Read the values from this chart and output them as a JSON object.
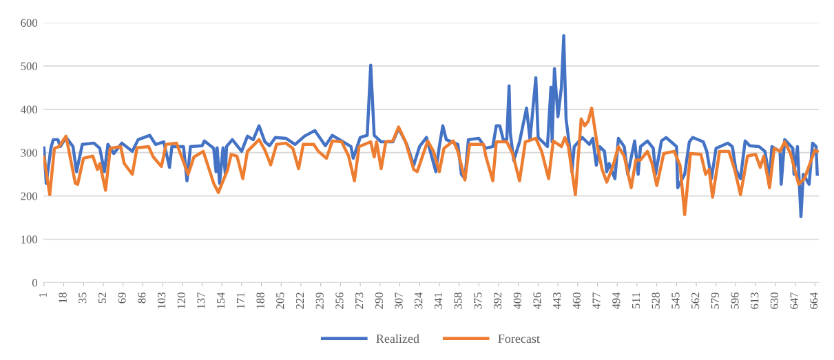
{
  "chart_data": {
    "type": "line",
    "xlim": [
      0.5,
      667.5
    ],
    "xticks": [
      1,
      18,
      35,
      52,
      69,
      86,
      103,
      120,
      137,
      154,
      171,
      188,
      205,
      222,
      239,
      256,
      273,
      290,
      307,
      324,
      341,
      358,
      375,
      392,
      409,
      426,
      443,
      460,
      477,
      494,
      511,
      528,
      545,
      562,
      579,
      596,
      613,
      630,
      647,
      664
    ],
    "ylim": [
      0,
      600
    ],
    "yticks": [
      0,
      100,
      200,
      300,
      400,
      500,
      600
    ],
    "grid": "y",
    "legend": "bottom",
    "line_style": "solid",
    "series": [
      {
        "name": "Realized",
        "color": "#4472c4",
        "x": [
          1,
          3,
          7,
          9,
          13,
          15,
          20,
          26,
          29,
          34,
          44,
          49,
          53,
          56,
          61,
          68,
          77,
          82,
          92,
          97,
          104,
          109,
          111,
          121,
          124,
          127,
          137,
          139,
          147,
          149,
          150,
          152,
          155,
          157,
          158,
          163,
          171,
          176,
          181,
          186,
          191,
          195,
          200,
          209,
          217,
          225,
          234,
          243,
          249,
          265,
          267,
          273,
          279,
          282,
          285,
          291,
          301,
          306,
          313,
          319,
          324,
          330,
          338,
          341,
          344,
          347,
          357,
          360,
          363,
          366,
          375,
          381,
          387,
          390,
          393,
          396,
          399,
          401,
          402,
          405,
          410,
          416,
          419,
          424,
          426,
          434,
          437,
          438,
          440,
          443,
          446,
          448,
          450,
          453,
          455,
          457,
          464,
          470,
          473,
          476,
          479,
          483,
          485,
          487,
          492,
          495,
          500,
          503,
          509,
          512,
          514,
          520,
          525,
          527,
          532,
          536,
          545,
          546,
          550,
          552,
          556,
          559,
          568,
          571,
          575,
          579,
          589,
          593,
          596,
          600,
          604,
          608,
          616,
          621,
          625,
          627,
          634,
          635,
          638,
          645,
          646,
          649,
          652,
          654,
          659,
          662,
          665,
          666
        ],
        "values": [
          311,
          229,
          311,
          330,
          330,
          314,
          335,
          314,
          256,
          319,
          322,
          310,
          256,
          319,
          298,
          322,
          303,
          330,
          340,
          319,
          325,
          266,
          314,
          314,
          235,
          314,
          316,
          327,
          310,
          256,
          311,
          229,
          311,
          250,
          314,
          330,
          303,
          338,
          330,
          362,
          325,
          316,
          335,
          333,
          319,
          338,
          351,
          316,
          340,
          314,
          287,
          335,
          340,
          502,
          340,
          325,
          325,
          356,
          319,
          271,
          314,
          335,
          256,
          314,
          362,
          330,
          319,
          250,
          240,
          330,
          333,
          310,
          314,
          362,
          362,
          330,
          330,
          454,
          346,
          282,
          325,
          403,
          330,
          473,
          335,
          314,
          451,
          325,
          494,
          383,
          451,
          570,
          378,
          314,
          256,
          314,
          335,
          319,
          333,
          271,
          314,
          303,
          256,
          275,
          240,
          333,
          314,
          250,
          327,
          250,
          314,
          327,
          310,
          250,
          327,
          335,
          314,
          219,
          240,
          250,
          325,
          335,
          325,
          303,
          240,
          310,
          322,
          314,
          261,
          240,
          327,
          316,
          314,
          303,
          240,
          314,
          303,
          227,
          330,
          310,
          250,
          314,
          152,
          250,
          227,
          322,
          314,
          250
        ]
      },
      {
        "name": "Forecast",
        "color": "#ed7d31",
        "x": [
          1,
          6,
          10,
          14,
          20,
          28,
          30,
          35,
          43,
          47,
          49,
          54,
          58,
          67,
          70,
          77,
          81,
          91,
          95,
          102,
          106,
          115,
          125,
          130,
          138,
          147,
          151,
          159,
          162,
          167,
          172,
          176,
          186,
          191,
          196,
          201,
          209,
          215,
          220,
          224,
          233,
          237,
          244,
          249,
          257,
          263,
          268,
          272,
          282,
          285,
          287,
          291,
          295,
          301,
          306,
          312,
          319,
          322,
          331,
          336,
          341,
          345,
          353,
          357,
          363,
          367,
          379,
          381,
          387,
          390,
          399,
          404,
          410,
          415,
          424,
          429,
          435,
          439,
          446,
          449,
          452,
          458,
          463,
          466,
          469,
          472,
          477,
          481,
          485,
          490,
          495,
          500,
          506,
          510,
          514,
          520,
          524,
          528,
          534,
          543,
          548,
          552,
          557,
          566,
          570,
          573,
          576,
          582,
          590,
          595,
          600,
          606,
          613,
          617,
          620,
          625,
          629,
          634,
          638,
          643,
          650,
          655,
          664,
          666
        ],
        "values": [
          290,
          203,
          310,
          314,
          338,
          229,
          227,
          287,
          292,
          261,
          275,
          213,
          310,
          314,
          275,
          250,
          311,
          314,
          290,
          268,
          319,
          322,
          250,
          290,
          303,
          229,
          208,
          261,
          296,
          292,
          240,
          303,
          330,
          306,
          272,
          319,
          322,
          310,
          263,
          319,
          319,
          303,
          287,
          327,
          325,
          292,
          235,
          314,
          325,
          290,
          325,
          263,
          325,
          327,
          359,
          325,
          261,
          256,
          327,
          303,
          256,
          310,
          327,
          303,
          237,
          319,
          319,
          292,
          235,
          325,
          325,
          298,
          235,
          325,
          333,
          303,
          240,
          327,
          314,
          335,
          314,
          203,
          378,
          362,
          372,
          403,
          314,
          261,
          232,
          266,
          314,
          292,
          219,
          283,
          283,
          303,
          275,
          224,
          298,
          303,
          271,
          157,
          298,
          296,
          250,
          261,
          197,
          303,
          303,
          261,
          203,
          292,
          296,
          266,
          292,
          219,
          310,
          303,
          325,
          298,
          227,
          240,
          306,
          303
        ]
      }
    ]
  }
}
